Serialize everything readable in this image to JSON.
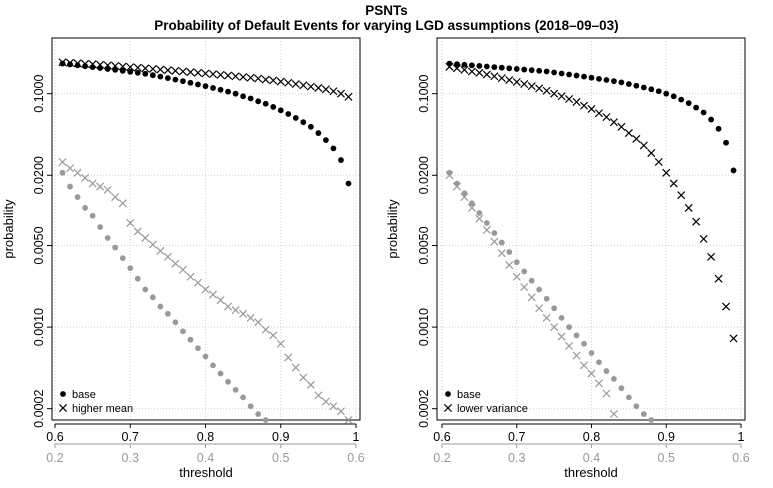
{
  "figure": {
    "title": "PSNTs",
    "subtitle": "Probability of Default Events for varying LGD assumptions (2018–09–03)"
  },
  "colors": {
    "base_series": "#000000",
    "shifted_series": "#999999",
    "axis": "#000000",
    "grid": "#d0d0d0"
  },
  "chart_data": [
    {
      "type": "scatter",
      "panel": "left",
      "title": "",
      "xlabel": "threshold",
      "ylabel": "probability",
      "y_scale": "log",
      "ylim": [
        0.00016,
        0.3
      ],
      "grid": true,
      "legend_position": "bottom-left",
      "x_axes": [
        {
          "name": "top",
          "ticks": [
            "0.6",
            "0.7",
            "0.8",
            "0.9",
            "1"
          ],
          "range": [
            0.6,
            1.0
          ],
          "color": "#000000"
        },
        {
          "name": "bottom",
          "ticks": [
            "0.2",
            "0.3",
            "0.4",
            "0.5",
            "0.6"
          ],
          "range": [
            0.2,
            0.6
          ],
          "color": "#999999"
        }
      ],
      "y_ticks": [
        "0.1000",
        "0.0200",
        "0.0050",
        "0.0010",
        "0.0002"
      ],
      "legend": [
        {
          "label": "base",
          "marker": "dot"
        },
        {
          "label": "higher mean",
          "marker": "cross"
        }
      ],
      "series": [
        {
          "name": "base",
          "axis": "top",
          "marker": "dot",
          "color": "#000000",
          "x": [
            0.61,
            0.62,
            0.63,
            0.64,
            0.65,
            0.66,
            0.67,
            0.68,
            0.69,
            0.7,
            0.71,
            0.72,
            0.73,
            0.74,
            0.75,
            0.76,
            0.77,
            0.78,
            0.79,
            0.8,
            0.81,
            0.82,
            0.83,
            0.84,
            0.85,
            0.86,
            0.87,
            0.88,
            0.89,
            0.9,
            0.91,
            0.92,
            0.93,
            0.94,
            0.95,
            0.96,
            0.97,
            0.98,
            0.99
          ],
          "y": [
            0.181,
            0.178,
            0.175,
            0.172,
            0.169,
            0.166,
            0.163,
            0.16,
            0.157,
            0.154,
            0.151,
            0.148,
            0.144,
            0.14,
            0.136,
            0.132,
            0.128,
            0.124,
            0.12,
            0.116,
            0.112,
            0.108,
            0.104,
            0.1,
            0.095,
            0.091,
            0.086,
            0.082,
            0.077,
            0.072,
            0.067,
            0.062,
            0.057,
            0.052,
            0.046,
            0.04,
            0.034,
            0.027,
            0.017
          ]
        },
        {
          "name": "higher mean",
          "axis": "top",
          "marker": "cross",
          "color": "#000000",
          "x": [
            0.61,
            0.62,
            0.63,
            0.64,
            0.65,
            0.66,
            0.67,
            0.68,
            0.69,
            0.7,
            0.71,
            0.72,
            0.73,
            0.74,
            0.75,
            0.76,
            0.77,
            0.78,
            0.79,
            0.8,
            0.81,
            0.82,
            0.83,
            0.84,
            0.85,
            0.86,
            0.87,
            0.88,
            0.89,
            0.9,
            0.91,
            0.92,
            0.93,
            0.94,
            0.95,
            0.96,
            0.97,
            0.98,
            0.99
          ],
          "y": [
            0.186,
            0.184,
            0.182,
            0.18,
            0.179,
            0.177,
            0.175,
            0.173,
            0.171,
            0.169,
            0.167,
            0.165,
            0.163,
            0.161,
            0.159,
            0.157,
            0.155,
            0.153,
            0.151,
            0.149,
            0.147,
            0.145,
            0.143,
            0.141,
            0.139,
            0.137,
            0.135,
            0.132,
            0.13,
            0.127,
            0.124,
            0.121,
            0.118,
            0.115,
            0.112,
            0.109,
            0.105,
            0.1,
            0.094
          ]
        },
        {
          "name": "base",
          "axis": "bottom",
          "marker": "dot",
          "color": "#999999",
          "x": [
            0.21,
            0.22,
            0.23,
            0.24,
            0.25,
            0.26,
            0.27,
            0.28,
            0.29,
            0.3,
            0.31,
            0.32,
            0.33,
            0.34,
            0.35,
            0.36,
            0.37,
            0.38,
            0.39,
            0.4,
            0.41,
            0.42,
            0.43,
            0.44,
            0.45,
            0.46,
            0.47,
            0.48
          ],
          "y": [
            0.021,
            0.016,
            0.013,
            0.0105,
            0.009,
            0.0072,
            0.0058,
            0.0048,
            0.0039,
            0.0032,
            0.0026,
            0.0021,
            0.0018,
            0.0015,
            0.0013,
            0.0011,
            0.00092,
            0.00078,
            0.00066,
            0.00056,
            0.00047,
            0.0004,
            0.00034,
            0.00029,
            0.00025,
            0.00021,
            0.00018,
            0.00016
          ]
        },
        {
          "name": "higher mean",
          "axis": "bottom",
          "marker": "cross",
          "color": "#999999",
          "x": [
            0.21,
            0.22,
            0.23,
            0.24,
            0.25,
            0.26,
            0.27,
            0.28,
            0.29,
            0.3,
            0.31,
            0.32,
            0.33,
            0.34,
            0.35,
            0.36,
            0.37,
            0.38,
            0.39,
            0.4,
            0.41,
            0.42,
            0.43,
            0.44,
            0.45,
            0.46,
            0.47,
            0.48,
            0.49,
            0.5,
            0.51,
            0.52,
            0.53,
            0.54,
            0.55,
            0.56,
            0.57,
            0.58,
            0.59
          ],
          "y": [
            0.026,
            0.023,
            0.021,
            0.019,
            0.017,
            0.016,
            0.015,
            0.013,
            0.0115,
            0.0078,
            0.0066,
            0.0058,
            0.0051,
            0.0045,
            0.004,
            0.0035,
            0.0031,
            0.0027,
            0.0024,
            0.0021,
            0.0019,
            0.0017,
            0.0015,
            0.0014,
            0.0013,
            0.0012,
            0.0011,
            0.00095,
            0.00085,
            0.00072,
            0.00055,
            0.00045,
            0.00037,
            0.00032,
            0.00026,
            0.00023,
            0.00021,
            0.00019,
            0.00016
          ]
        }
      ]
    },
    {
      "type": "scatter",
      "panel": "right",
      "title": "",
      "xlabel": "threshold",
      "ylabel": "probability",
      "y_scale": "log",
      "ylim": [
        0.00016,
        0.3
      ],
      "grid": true,
      "legend_position": "bottom-left",
      "x_axes": [
        {
          "name": "top",
          "ticks": [
            "0.6",
            "0.7",
            "0.8",
            "0.9",
            "1"
          ],
          "range": [
            0.6,
            1.0
          ],
          "color": "#000000"
        },
        {
          "name": "bottom",
          "ticks": [
            "0.2",
            "0.3",
            "0.4",
            "0.5",
            "0.6"
          ],
          "range": [
            0.2,
            0.6
          ],
          "color": "#999999"
        }
      ],
      "y_ticks": [
        "0.1000",
        "0.0200",
        "0.0050",
        "0.0010",
        "0.0002"
      ],
      "legend": [
        {
          "label": "base",
          "marker": "dot"
        },
        {
          "label": "lower variance",
          "marker": "cross"
        }
      ],
      "series": [
        {
          "name": "base",
          "axis": "top",
          "marker": "dot",
          "color": "#000000",
          "x": [
            0.61,
            0.62,
            0.63,
            0.64,
            0.65,
            0.66,
            0.67,
            0.68,
            0.69,
            0.7,
            0.71,
            0.72,
            0.73,
            0.74,
            0.75,
            0.76,
            0.77,
            0.78,
            0.79,
            0.8,
            0.81,
            0.82,
            0.83,
            0.84,
            0.85,
            0.86,
            0.87,
            0.88,
            0.89,
            0.9,
            0.91,
            0.92,
            0.93,
            0.94,
            0.95,
            0.96,
            0.97,
            0.98,
            0.99
          ],
          "y": [
            0.181,
            0.179,
            0.177,
            0.175,
            0.173,
            0.171,
            0.169,
            0.167,
            0.165,
            0.163,
            0.161,
            0.159,
            0.157,
            0.155,
            0.152,
            0.149,
            0.146,
            0.143,
            0.14,
            0.137,
            0.134,
            0.131,
            0.128,
            0.125,
            0.121,
            0.117,
            0.113,
            0.109,
            0.105,
            0.1,
            0.095,
            0.089,
            0.083,
            0.076,
            0.069,
            0.06,
            0.05,
            0.038,
            0.022
          ]
        },
        {
          "name": "lower variance",
          "axis": "top",
          "marker": "cross",
          "color": "#000000",
          "x": [
            0.61,
            0.62,
            0.63,
            0.64,
            0.65,
            0.66,
            0.67,
            0.68,
            0.69,
            0.7,
            0.71,
            0.72,
            0.73,
            0.74,
            0.75,
            0.76,
            0.77,
            0.78,
            0.79,
            0.8,
            0.81,
            0.82,
            0.83,
            0.84,
            0.85,
            0.86,
            0.87,
            0.88,
            0.89,
            0.9,
            0.91,
            0.92,
            0.93,
            0.94,
            0.95,
            0.96,
            0.97,
            0.98,
            0.99
          ],
          "y": [
            0.17,
            0.165,
            0.16,
            0.155,
            0.151,
            0.146,
            0.141,
            0.136,
            0.131,
            0.126,
            0.121,
            0.116,
            0.111,
            0.106,
            0.1,
            0.095,
            0.09,
            0.085,
            0.079,
            0.074,
            0.068,
            0.063,
            0.057,
            0.052,
            0.046,
            0.041,
            0.036,
            0.031,
            0.026,
            0.021,
            0.017,
            0.0135,
            0.0105,
            0.008,
            0.0057,
            0.004,
            0.0026,
            0.0015,
            0.0008
          ]
        },
        {
          "name": "base",
          "axis": "bottom",
          "marker": "dot",
          "color": "#999999",
          "x": [
            0.21,
            0.22,
            0.23,
            0.24,
            0.25,
            0.26,
            0.27,
            0.28,
            0.29,
            0.3,
            0.31,
            0.32,
            0.33,
            0.34,
            0.35,
            0.36,
            0.37,
            0.38,
            0.39,
            0.4,
            0.41,
            0.42,
            0.43,
            0.44,
            0.45,
            0.46,
            0.47,
            0.48
          ],
          "y": [
            0.021,
            0.017,
            0.014,
            0.0115,
            0.0095,
            0.0078,
            0.0064,
            0.0053,
            0.0044,
            0.0036,
            0.003,
            0.0025,
            0.0021,
            0.00175,
            0.00145,
            0.0012,
            0.001,
            0.00085,
            0.00072,
            0.0006,
            0.0005,
            0.00042,
            0.00036,
            0.0003,
            0.00025,
            0.00021,
            0.00018,
            0.00016
          ]
        },
        {
          "name": "lower variance",
          "axis": "bottom",
          "marker": "cross",
          "color": "#999999",
          "x": [
            0.21,
            0.22,
            0.23,
            0.24,
            0.25,
            0.26,
            0.27,
            0.28,
            0.29,
            0.3,
            0.31,
            0.32,
            0.33,
            0.34,
            0.35,
            0.36,
            0.37,
            0.38,
            0.39,
            0.4,
            0.41,
            0.42,
            0.43
          ],
          "y": [
            0.02,
            0.016,
            0.013,
            0.0105,
            0.0085,
            0.0068,
            0.0054,
            0.0043,
            0.0034,
            0.0027,
            0.0022,
            0.0018,
            0.00145,
            0.0012,
            0.001,
            0.00083,
            0.00069,
            0.00057,
            0.00047,
            0.0004,
            0.00033,
            0.00027,
            0.00018
          ]
        }
      ]
    }
  ]
}
